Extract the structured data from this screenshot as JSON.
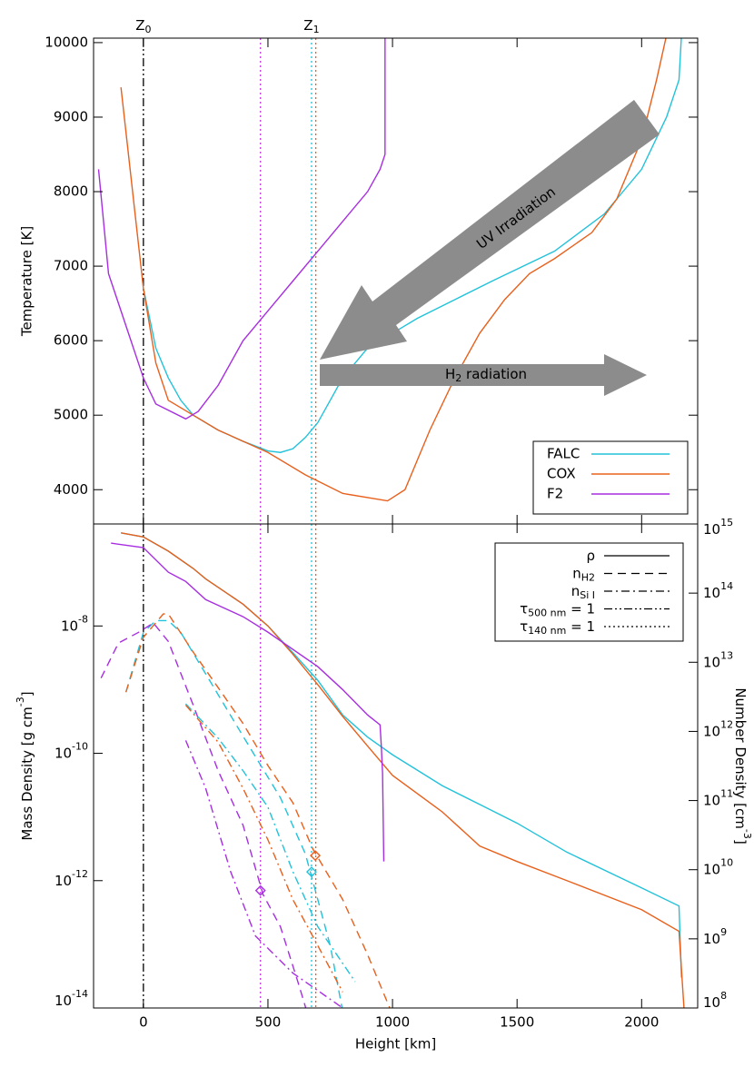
{
  "chart_data": [
    {
      "type": "line",
      "ylabel": "Temperature [K]",
      "xlim": [
        -200,
        2225
      ],
      "ylim": [
        3540,
        10060
      ],
      "xticks": [
        0,
        500,
        1000,
        1500,
        2000
      ],
      "show_xticklabels": false,
      "yticks": [
        4000,
        5000,
        6000,
        7000,
        8000,
        9000,
        10000
      ],
      "legend": "lower right",
      "markers": [
        {
          "text": "Z",
          "sub": "0",
          "x": 0
        },
        {
          "text": "Z",
          "sub": "1",
          "x": 675
        }
      ],
      "vlines": [
        {
          "x": 0,
          "color": "#000000",
          "style": "dashdotdot"
        },
        {
          "x": 470,
          "color": "#c23ae6",
          "style": "dotted"
        },
        {
          "x": 675,
          "color": "#22c2da",
          "style": "dotted"
        },
        {
          "x": 692,
          "color": "#e8601c",
          "style": "dotted"
        }
      ],
      "annotations": [
        {
          "text": "UV Irradiation"
        },
        {
          "text": "H",
          "sub": "2",
          "rest": " radiation"
        }
      ],
      "series": [
        {
          "name": "FALC",
          "color": "#22c2da",
          "style": "solid",
          "x": [
            0,
            50,
            100,
            150,
            200,
            300,
            400,
            500,
            550,
            600,
            650,
            700,
            750,
            800,
            900,
            1000,
            1100,
            1250,
            1400,
            1650,
            1850,
            2000,
            2100,
            2150,
            2160
          ],
          "values": [
            6700,
            5900,
            5500,
            5200,
            5000,
            4800,
            4650,
            4520,
            4500,
            4550,
            4700,
            4900,
            5200,
            5500,
            5900,
            6100,
            6300,
            6550,
            6800,
            7200,
            7700,
            8300,
            9000,
            9500,
            10100
          ]
        },
        {
          "name": "COX",
          "color": "#e8601c",
          "style": "solid",
          "x": [
            -90,
            0,
            50,
            100,
            200,
            300,
            500,
            650,
            800,
            980,
            1050,
            1150,
            1250,
            1350,
            1450,
            1550,
            1650,
            1800,
            1900,
            2000,
            2060,
            2100
          ],
          "values": [
            9400,
            6700,
            5700,
            5200,
            5000,
            4800,
            4500,
            4200,
            3950,
            3850,
            4000,
            4800,
            5500,
            6100,
            6550,
            6900,
            7100,
            7450,
            7900,
            8700,
            9500,
            10100
          ]
        },
        {
          "name": "F2",
          "color": "#a72ee0",
          "style": "solid",
          "x": [
            -180,
            -140,
            -50,
            0,
            50,
            170,
            220,
            300,
            400,
            500,
            600,
            700,
            800,
            900,
            950,
            970,
            970
          ],
          "values": [
            8300,
            6900,
            6000,
            5500,
            5150,
            4950,
            5050,
            5400,
            6000,
            6400,
            6800,
            7200,
            7600,
            8000,
            8300,
            8500,
            10100
          ]
        }
      ]
    },
    {
      "type": "line",
      "log_y": true,
      "xlabel": "Height [km]",
      "ylabel": {
        "text": "Mass Density [g cm",
        "sup": "-3",
        "rest": "]"
      },
      "y2label": {
        "text": "Number Density [cm",
        "sup": "-3",
        "rest": "]"
      },
      "xlim": [
        -200,
        2225
      ],
      "ylim": [
        1e-14,
        4e-07
      ],
      "y2lim": [
        100000000.0,
        1000000000000000.0
      ],
      "xticks": [
        0,
        500,
        1000,
        1500,
        2000
      ],
      "show_xticklabels": true,
      "yticks": [
        {
          "value": 1e-14,
          "label": "10",
          "exp": "-14"
        },
        {
          "value": 1e-12,
          "label": "10",
          "exp": "-12"
        },
        {
          "value": 1e-10,
          "label": "10",
          "exp": "-10"
        },
        {
          "value": 1e-08,
          "label": "10",
          "exp": "-8"
        }
      ],
      "y2ticks": [
        {
          "value": 100000000.0,
          "label": "10",
          "exp": "8"
        },
        {
          "value": 1000000000.0,
          "label": "10",
          "exp": "9"
        },
        {
          "value": 10000000000.0,
          "label": "10",
          "exp": "10"
        },
        {
          "value": 100000000000.0,
          "label": "10",
          "exp": "11"
        },
        {
          "value": 1000000000000.0,
          "label": "10",
          "exp": "12"
        },
        {
          "value": 10000000000000.0,
          "label": "10",
          "exp": "13"
        },
        {
          "value": 100000000000000.0,
          "label": "10",
          "exp": "14"
        },
        {
          "value": 1000000000000000.0,
          "label": "10",
          "exp": "15"
        }
      ],
      "legend": "upper right",
      "style_legend": [
        {
          "text": "ρ",
          "style": "solid"
        },
        {
          "text": "n",
          "sub": "H2",
          "style": "dashed"
        },
        {
          "text": "n",
          "sub": "Si I",
          "style": "dashdot"
        },
        {
          "text": "τ",
          "sub": "500 nm",
          "rest": " = 1",
          "style": "dashdotdot"
        },
        {
          "text": "τ",
          "sub": "140 nm",
          "rest": " = 1",
          "style": "dotted"
        }
      ],
      "vlines": [
        {
          "x": 0,
          "color": "#000000",
          "style": "dashdotdot"
        },
        {
          "x": 470,
          "color": "#c23ae6",
          "style": "dotted"
        },
        {
          "x": 675,
          "color": "#22c2da",
          "style": "dotted"
        },
        {
          "x": 692,
          "color": "#e8601c",
          "style": "dotted"
        }
      ],
      "points": [
        {
          "x": 470,
          "value": 5000000000.0,
          "color": "#a72ee0",
          "axis": "y2"
        },
        {
          "x": 675,
          "value": 9300000000.0,
          "color": "#22c2da",
          "axis": "y2"
        },
        {
          "x": 690,
          "value": 16000000000.0,
          "color": "#e8601c",
          "axis": "y2"
        }
      ],
      "series": [
        {
          "color": "#22c2da",
          "style": "solid",
          "x": [
            -90,
            0,
            100,
            200,
            250,
            400,
            500,
            600,
            700,
            800,
            900,
            1000,
            1200,
            1500,
            1700,
            2000,
            2150,
            2160
          ],
          "values": [
            2.9e-07,
            2.5e-07,
            1.5e-07,
            8e-08,
            5.5e-08,
            2.2e-08,
            1e-08,
            3.8e-09,
            1.4e-09,
            4e-10,
            1.8e-10,
            9.5e-11,
            3.1e-11,
            8e-12,
            2.8e-12,
            7.7e-13,
            4e-13,
            3e-14
          ]
        },
        {
          "color": "#e8601c",
          "style": "solid",
          "x": [
            -90,
            0,
            100,
            200,
            250,
            400,
            500,
            600,
            700,
            800,
            900,
            1000,
            1200,
            1350,
            1500,
            1700,
            2000,
            2150,
            2170
          ],
          "values": [
            2.9e-07,
            2.5e-07,
            1.5e-07,
            8e-08,
            5.5e-08,
            2.2e-08,
            1e-08,
            3.6e-09,
            1.2e-09,
            3.8e-10,
            1.3e-10,
            4.5e-11,
            1.2e-11,
            3.5e-12,
            2e-12,
            1e-12,
            3.5e-13,
            1.6e-13,
            1e-14
          ]
        },
        {
          "color": "#a72ee0",
          "style": "solid",
          "x": [
            -130,
            0,
            100,
            170,
            250,
            400,
            500,
            700,
            800,
            900,
            950,
            955,
            960,
            965
          ],
          "values": [
            2e-07,
            1.7e-07,
            7e-08,
            5e-08,
            2.6e-08,
            1.4e-08,
            8e-09,
            2.3e-09,
            1e-09,
            4e-10,
            2.8e-10,
            1.3e-10,
            5e-11,
            2e-12
          ]
        },
        {
          "color": "#22c2da",
          "style": "dashed",
          "axis": "y2",
          "x": [
            -70,
            0,
            50,
            100,
            150,
            250,
            350,
            450,
            550,
            650,
            670,
            750,
            800
          ],
          "values": [
            3700000000000.0,
            27000000000000.0,
            40000000000000.0,
            40000000000000.0,
            27000000000000.0,
            6800000000000.0,
            1700000000000.0,
            430000000000.0,
            110000000000.0,
            17000000000.0,
            9300000000.0,
            800000000.0,
            90000000.0
          ]
        },
        {
          "color": "#e8601c",
          "style": "dashed",
          "axis": "y2",
          "x": [
            -70,
            0,
            80,
            100,
            200,
            300,
            400,
            500,
            600,
            680,
            800,
            900,
            1000
          ],
          "values": [
            3700000000000.0,
            23000000000000.0,
            50000000000000.0,
            50000000000000.0,
            14000000000000.0,
            4300000000000.0,
            1300000000000.0,
            320000000000.0,
            93000000000.0,
            20000000000.0,
            3700000000.0,
            590000000.0,
            80000000.0
          ]
        },
        {
          "color": "#a72ee0",
          "style": "dashed",
          "axis": "y2",
          "x": [
            -170,
            -100,
            -20,
            40,
            100,
            200,
            300,
            400,
            480,
            550,
            620,
            660
          ],
          "values": [
            5900000000000.0,
            19000000000000.0,
            27000000000000.0,
            37000000000000.0,
            20000000000000.0,
            2400000000000.0,
            270000000000.0,
            44000000000.0,
            4400000000.0,
            1500000000.0,
            240000000.0,
            80000000.0
          ]
        },
        {
          "color": "#22c2da",
          "style": "dashdot",
          "axis": "y2",
          "x": [
            170,
            300,
            400,
            500,
            600,
            700,
            850
          ],
          "values": [
            2500000000000.0,
            800000000000.0,
            270000000000.0,
            80000000000.0,
            9400000000.0,
            1500000000.0,
            240000000.0
          ]
        },
        {
          "color": "#e8601c",
          "style": "dashdot",
          "axis": "y2",
          "x": [
            170,
            300,
            400,
            500,
            600,
            700,
            800
          ],
          "values": [
            2400000000000.0,
            700000000000.0,
            150000000000.0,
            27000000000.0,
            3700000000.0,
            800000000.0,
            170000000.0
          ]
        },
        {
          "color": "#a72ee0",
          "style": "dashdot",
          "axis": "y2",
          "x": [
            170,
            250,
            350,
            450,
            600,
            800
          ],
          "values": [
            740000000000.0,
            150000000000.0,
            9400000000.0,
            1100000000.0,
            320000000.0,
            100000000.0
          ]
        }
      ]
    }
  ]
}
